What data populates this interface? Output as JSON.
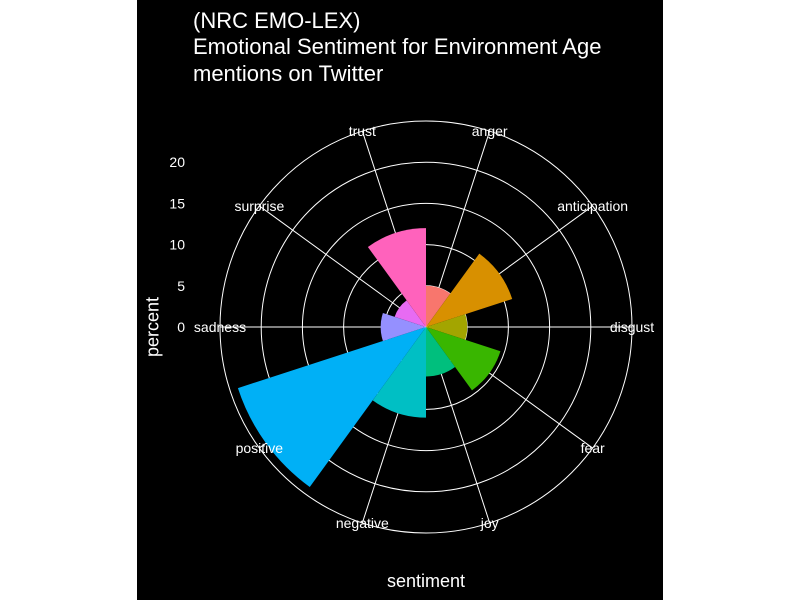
{
  "chart_data": {
    "type": "bar",
    "polar": true,
    "title_lines": [
      "(NRC EMO-LEX)",
      "Emotional Sentiment for Environment Age",
      "mentions on Twitter"
    ],
    "xlabel": "sentiment",
    "ylabel": "percent",
    "radial_ticks": [
      "0",
      "5",
      "10",
      "15",
      "20"
    ],
    "ylim": [
      0,
      25
    ],
    "categories": [
      "anger",
      "anticipation",
      "disgust",
      "fear",
      "joy",
      "negative",
      "positive",
      "sadness",
      "surprise",
      "trust"
    ],
    "values": [
      5,
      11,
      5,
      9.5,
      6,
      11,
      24,
      5.5,
      4,
      12
    ],
    "colors": [
      "#F8766D",
      "#D89000",
      "#A3A500",
      "#39B600",
      "#00BF7D",
      "#00BFC4",
      "#00B0F6",
      "#9590FF",
      "#E76BF3",
      "#FF62BC"
    ],
    "legend": "none",
    "grid": true,
    "background": "#000000"
  }
}
